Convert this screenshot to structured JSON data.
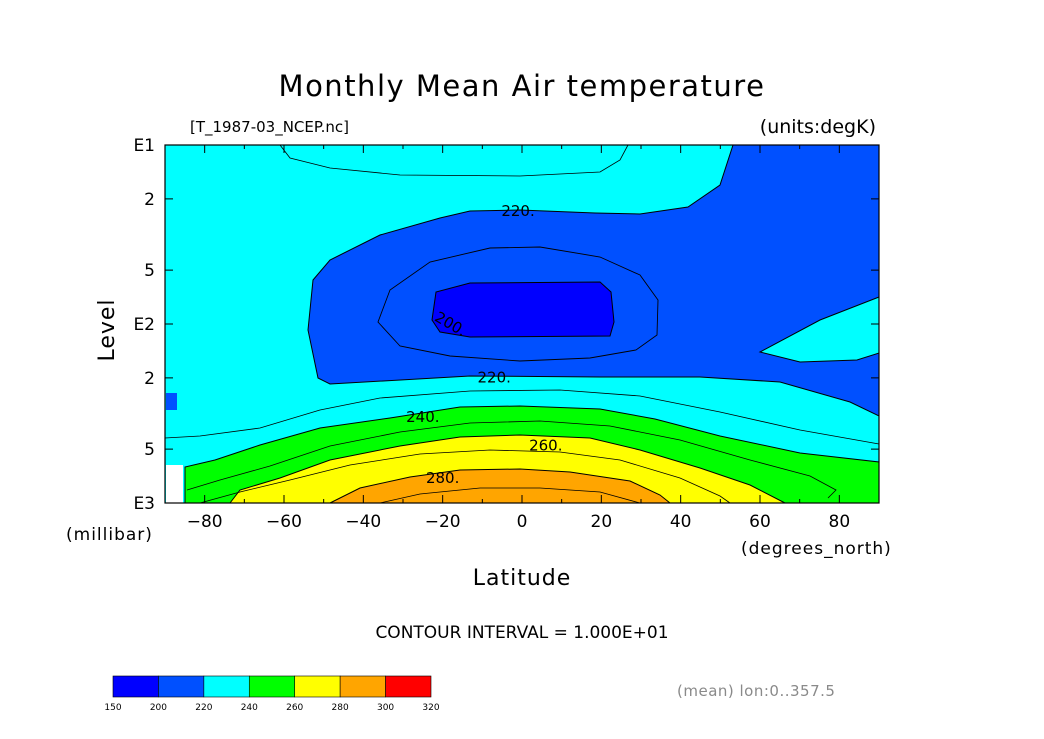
{
  "chart_data": {
    "type": "contour",
    "title": "Monthly Mean Air temperature",
    "source_file": "[T_1987-03_NCEP.nc]",
    "units": "(units:degK)",
    "xlabel": "Latitude",
    "x_units": "(degrees_north)",
    "ylabel": "Level",
    "y_units": "(millibar)",
    "xlim": [
      -90,
      90
    ],
    "x_ticks": [
      -80,
      -60,
      -40,
      -20,
      0,
      20,
      40,
      60,
      80
    ],
    "x_tick_labels": [
      "−80",
      "−60",
      "−40",
      "−20",
      "0",
      "20",
      "40",
      "60",
      "80"
    ],
    "y_log": true,
    "ylim_log10": [
      1,
      3
    ],
    "y_ticks": [
      {
        "log10": 1.0,
        "label": "E1"
      },
      {
        "log10": 1.301,
        "label": "2"
      },
      {
        "log10": 1.699,
        "label": "5"
      },
      {
        "log10": 2.0,
        "label": "E2"
      },
      {
        "log10": 2.301,
        "label": "2"
      },
      {
        "log10": 2.699,
        "label": "5"
      },
      {
        "log10": 3.0,
        "label": "E3"
      }
    ],
    "contour_interval_text": "CONTOUR INTERVAL = 1.000E+01",
    "contour_labels": [
      {
        "text": "220.",
        "lat": -1,
        "log10p": 1.37
      },
      {
        "text": "200.",
        "lat": -18,
        "log10p": 2.0,
        "rotate": 30
      },
      {
        "text": "220.",
        "lat": -7,
        "log10p": 2.3
      },
      {
        "text": "240.",
        "lat": -25,
        "log10p": 2.52
      },
      {
        "text": "260.",
        "lat": 6,
        "log10p": 2.68
      },
      {
        "text": "280.",
        "lat": -20,
        "log10p": 2.86
      }
    ],
    "colorbar": {
      "levels": [
        150,
        200,
        220,
        240,
        260,
        280,
        300,
        320
      ],
      "colors": [
        "#0000ff",
        "#0050ff",
        "#00ffff",
        "#00ff00",
        "#ffff00",
        "#ffa500",
        "#ff0000"
      ],
      "labels": [
        "150",
        "200",
        "220",
        "240",
        "260",
        "280",
        "300",
        "320"
      ]
    },
    "footer_note": "(mean) lon:0..357.5"
  }
}
